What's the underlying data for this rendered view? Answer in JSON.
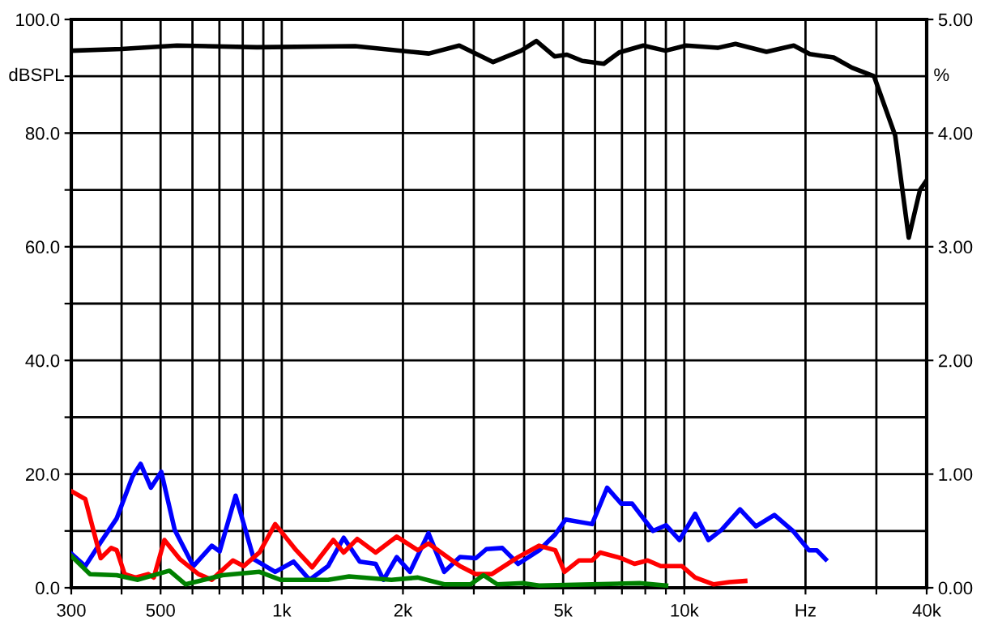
{
  "chart_data": {
    "type": "line",
    "ylabel": "dBSPL",
    "y2label": "%",
    "xlim": [
      300,
      40000
    ],
    "log": "x",
    "xticks": [
      300,
      {
        "value": 400,
        "label": null
      },
      500,
      {
        "value": 600,
        "label": null
      },
      {
        "value": 700,
        "label": null
      },
      {
        "value": 800,
        "label": null
      },
      {
        "value": 900,
        "label": null
      },
      {
        "value": 1000,
        "label": "1k"
      },
      {
        "value": 2000,
        "label": "2k"
      },
      {
        "value": 3000,
        "label": null
      },
      {
        "value": 4000,
        "label": null
      },
      {
        "value": 5000,
        "label": "5k"
      },
      {
        "value": 6000,
        "label": null
      },
      {
        "value": 7000,
        "label": null
      },
      {
        "value": 8000,
        "label": null
      },
      {
        "value": 9000,
        "label": null
      },
      {
        "value": 10000,
        "label": "10k"
      },
      {
        "value": 20000,
        "label": "Hz"
      },
      {
        "value": 30000,
        "label": null
      },
      {
        "value": 40000,
        "label": "40k"
      }
    ],
    "ylim": [
      0,
      100
    ],
    "yticks": [
      {
        "value": 0,
        "label": "0.0"
      },
      {
        "value": 10,
        "label": null
      },
      {
        "value": 20,
        "label": "20.0"
      },
      {
        "value": 30,
        "label": null
      },
      {
        "value": 40,
        "label": "40.0"
      },
      {
        "value": 50,
        "label": null
      },
      {
        "value": 60,
        "label": "60.0"
      },
      {
        "value": 70,
        "label": null
      },
      {
        "value": 80,
        "label": "80.0"
      },
      {
        "value": 90,
        "label": null
      },
      {
        "value": 100,
        "label": "100.0"
      }
    ],
    "y2lim": [
      0,
      5
    ],
    "y2ticks": [
      {
        "value": 0,
        "label": "0.00"
      },
      {
        "value": 1,
        "label": "1.00"
      },
      {
        "value": 2,
        "label": "2.00"
      },
      {
        "value": 3,
        "label": "3.00"
      },
      {
        "value": 4,
        "label": "4.00"
      },
      {
        "value": 5,
        "label": "5.00"
      }
    ],
    "grid": true,
    "marker": "none",
    "line_style": "solid",
    "series": [
      {
        "color": "#000000",
        "x": [
          300,
          400,
          549,
          867,
          1521,
          2320,
          2760,
          3350,
          3930,
          4290,
          4760,
          5110,
          5580,
          6310,
          6890,
          7910,
          8980,
          10100,
          12100,
          13400,
          16000,
          18700,
          20500,
          23500,
          26100,
          29600,
          33400,
          36100,
          38500,
          40000
        ],
        "values": [
          94.5,
          94.8,
          95.4,
          95.1,
          95.3,
          94.0,
          95.4,
          92.5,
          94.5,
          96.2,
          93.5,
          93.8,
          92.7,
          92.2,
          94.2,
          95.4,
          94.5,
          95.4,
          95.0,
          95.7,
          94.3,
          95.4,
          93.9,
          93.3,
          91.5,
          90.0,
          79.6,
          61.6,
          70.0,
          71.7
        ]
      },
      {
        "color": "#0000ff",
        "axis": "y2",
        "x": [
          300,
          325,
          355,
          389,
          426,
          446,
          473,
          502,
          542,
          603,
          670,
          701,
          768,
          853,
          963,
          1070,
          1172,
          1303,
          1425,
          1562,
          1711,
          1790,
          1930,
          2082,
          2314,
          2533,
          2772,
          3035,
          3224,
          3530,
          3866,
          4360,
          4780,
          5070,
          5900,
          6430,
          6970,
          7420,
          8360,
          9010,
          9730,
          10640,
          11480,
          12380,
          13750,
          15060,
          16740,
          18620,
          20400,
          21330,
          22450
        ],
        "values": [
          0.3,
          0.19,
          0.4,
          0.61,
          0.98,
          1.09,
          0.88,
          1.02,
          0.51,
          0.19,
          0.37,
          0.32,
          0.81,
          0.25,
          0.14,
          0.23,
          0.07,
          0.19,
          0.44,
          0.23,
          0.21,
          0.07,
          0.27,
          0.14,
          0.48,
          0.14,
          0.27,
          0.26,
          0.34,
          0.35,
          0.21,
          0.33,
          0.47,
          0.6,
          0.56,
          0.88,
          0.74,
          0.74,
          0.5,
          0.55,
          0.42,
          0.65,
          0.42,
          0.51,
          0.69,
          0.54,
          0.64,
          0.5,
          0.33,
          0.33,
          0.25
        ]
      },
      {
        "color": "#ff0000",
        "axis": "y2",
        "x": [
          300,
          325,
          355,
          377,
          389,
          407,
          433,
          466,
          481,
          511,
          559,
          621,
          670,
          756,
          804,
          880,
          963,
          1086,
          1190,
          1343,
          1425,
          1540,
          1711,
          1930,
          2178,
          2314,
          2772,
          3035,
          3325,
          3866,
          4360,
          4780,
          5040,
          5470,
          5900,
          6180,
          6970,
          7520,
          8110,
          8740,
          9870,
          10640,
          11830,
          12950,
          14170
        ],
        "values": [
          0.85,
          0.78,
          0.26,
          0.35,
          0.33,
          0.12,
          0.09,
          0.12,
          0.09,
          0.42,
          0.25,
          0.12,
          0.07,
          0.24,
          0.19,
          0.31,
          0.56,
          0.33,
          0.18,
          0.42,
          0.31,
          0.43,
          0.31,
          0.45,
          0.33,
          0.39,
          0.19,
          0.12,
          0.12,
          0.27,
          0.37,
          0.33,
          0.14,
          0.24,
          0.24,
          0.31,
          0.26,
          0.21,
          0.24,
          0.19,
          0.19,
          0.09,
          0.03,
          0.05,
          0.06
        ]
      },
      {
        "color": "#008000",
        "axis": "y2",
        "x": [
          300,
          334,
          389,
          439,
          526,
          577,
          712,
          880,
          992,
          1303,
          1470,
          1872,
          2178,
          2533,
          2946,
          3170,
          3430,
          3990,
          4360,
          7740,
          9010
        ],
        "values": [
          0.28,
          0.12,
          0.11,
          0.07,
          0.15,
          0.03,
          0.11,
          0.14,
          0.07,
          0.07,
          0.1,
          0.07,
          0.09,
          0.03,
          0.03,
          0.11,
          0.03,
          0.04,
          0.02,
          0.04,
          0.02
        ]
      }
    ]
  }
}
